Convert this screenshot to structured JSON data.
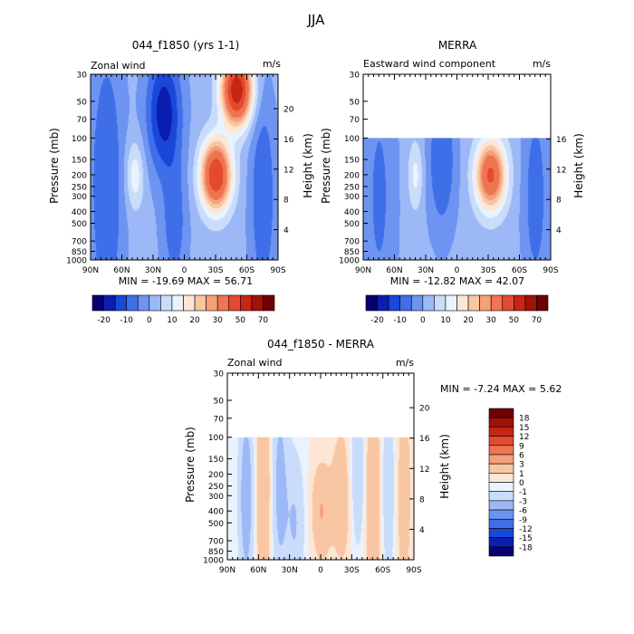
{
  "figure": {
    "title": "JJA"
  },
  "chart_data": [
    {
      "type": "heatmap",
      "title": "044_f1850 (yrs 1-1)",
      "field_label": "Zonal wind",
      "units": "m/s",
      "x_ticks": [
        "90N",
        "60N",
        "30N",
        "0",
        "30S",
        "60S",
        "90S"
      ],
      "x_range": [
        90,
        -90
      ],
      "y_left_label": "Pressure (mb)",
      "y_left_ticks": [
        30,
        50,
        70,
        100,
        150,
        200,
        250,
        300,
        400,
        500,
        700,
        850,
        1000
      ],
      "y_right_label": "Height (km)",
      "y_right_ticks": [
        4,
        8,
        12,
        16,
        20
      ],
      "data_top_pressure": 30,
      "stats_text": "MIN = -19.69   MAX = 56.71",
      "color_levels": [
        -20,
        -10,
        0,
        10,
        20,
        30,
        50,
        70
      ],
      "features": [
        {
          "lat": 75,
          "p": 250,
          "value": -12,
          "wlat": 12,
          "wlogp": 2.0
        },
        {
          "lat": 48,
          "p": 200,
          "value": 12,
          "wlat": 6,
          "wlogp": 0.45
        },
        {
          "lat": 20,
          "p": 60,
          "value": -20,
          "wlat": 12,
          "wlogp": 0.8
        },
        {
          "lat": 10,
          "p": 500,
          "value": -10,
          "wlat": 9,
          "wlogp": 0.9
        },
        {
          "lat": -30,
          "p": 200,
          "value": 48,
          "wlat": 10,
          "wlogp": 0.45
        },
        {
          "lat": -50,
          "p": 40,
          "value": 56,
          "wlat": 10,
          "wlogp": 0.45
        },
        {
          "lat": -75,
          "p": 300,
          "value": -12,
          "wlat": 9,
          "wlogp": 1.4
        }
      ],
      "colorbar": {
        "labels": [
          "-20",
          "-10",
          "0",
          "10",
          "20",
          "30",
          "50",
          "70"
        ],
        "colors": [
          "#08006e",
          "#0a1fb0",
          "#1a47d8",
          "#3e6fe8",
          "#6d94f0",
          "#9cb8f6",
          "#c9dcfa",
          "#eaf2fd",
          "#fde6d4",
          "#f8c6a3",
          "#f5a07a",
          "#ef7451",
          "#e44a2d",
          "#c72616",
          "#a2100a",
          "#6e0000"
        ]
      }
    },
    {
      "type": "heatmap",
      "title": "MERRA",
      "field_label": "Eastward wind component",
      "units": "m/s",
      "x_ticks": [
        "90N",
        "60N",
        "30N",
        "0",
        "30S",
        "60S",
        "90S"
      ],
      "x_range": [
        90,
        -90
      ],
      "y_left_label": "Pressure (mb)",
      "y_left_ticks": [
        30,
        50,
        70,
        100,
        150,
        200,
        250,
        300,
        400,
        500,
        700,
        850,
        1000
      ],
      "y_right_label": "Height (km)",
      "y_right_ticks": [
        4,
        8,
        12,
        16
      ],
      "data_top_pressure": 100,
      "stats_text": "MIN = -12.82   MAX = 42.07",
      "color_levels": [
        -20,
        -10,
        0,
        10,
        20,
        30,
        50,
        70
      ],
      "features": [
        {
          "lat": 75,
          "p": 300,
          "value": -8,
          "wlat": 12,
          "wlogp": 2.0
        },
        {
          "lat": 40,
          "p": 200,
          "value": 10,
          "wlat": 5,
          "wlogp": 0.45
        },
        {
          "lat": 15,
          "p": 150,
          "value": -12,
          "wlat": 10,
          "wlogp": 1.0
        },
        {
          "lat": -32,
          "p": 200,
          "value": 40,
          "wlat": 10,
          "wlogp": 0.45
        },
        {
          "lat": -75,
          "p": 300,
          "value": -10,
          "wlat": 9,
          "wlogp": 1.4
        }
      ],
      "colorbar": {
        "labels": [
          "-20",
          "-10",
          "0",
          "10",
          "20",
          "30",
          "50",
          "70"
        ],
        "colors": [
          "#08006e",
          "#0a1fb0",
          "#1a47d8",
          "#3e6fe8",
          "#6d94f0",
          "#9cb8f6",
          "#c9dcfa",
          "#eaf2fd",
          "#fde6d4",
          "#f8c6a3",
          "#f5a07a",
          "#ef7451",
          "#e44a2d",
          "#c72616",
          "#a2100a",
          "#6e0000"
        ]
      }
    },
    {
      "type": "heatmap",
      "title": "044_f1850 - MERRA",
      "field_label": "Zonal wind",
      "units": "m/s",
      "x_ticks": [
        "90N",
        "60N",
        "30N",
        "0",
        "30S",
        "60S",
        "90S"
      ],
      "x_range": [
        90,
        -90
      ],
      "y_left_label": "Pressure (mb)",
      "y_left_ticks": [
        30,
        50,
        70,
        100,
        150,
        200,
        250,
        300,
        400,
        500,
        700,
        850,
        1000
      ],
      "y_right_label": "Height (km)",
      "y_right_ticks": [
        4,
        8,
        12,
        16,
        20
      ],
      "data_top_pressure": 100,
      "stats_text": "MIN =  -7.24   MAX =   5.62",
      "color_levels": [
        -18,
        -15,
        -12,
        -9,
        -6,
        -3,
        -1,
        0,
        1,
        3,
        6,
        9,
        12,
        15,
        18
      ],
      "features": [
        {
          "lat": 72,
          "p": 300,
          "value": -5,
          "wlat": 5,
          "wlogp": 1.2
        },
        {
          "lat": 55,
          "p": 250,
          "value": 3,
          "wlat": 6,
          "wlogp": 1.5
        },
        {
          "lat": 40,
          "p": 250,
          "value": -4,
          "wlat": 6,
          "wlogp": 1.4
        },
        {
          "lat": 25,
          "p": 500,
          "value": -3,
          "wlat": 6,
          "wlogp": 0.9
        },
        {
          "lat": 0,
          "p": 400,
          "value": 3,
          "wlat": 6,
          "wlogp": 0.6
        },
        {
          "lat": -20,
          "p": 300,
          "value": 2,
          "wlat": 8,
          "wlogp": 1.0
        },
        {
          "lat": -35,
          "p": 200,
          "value": -3,
          "wlat": 5,
          "wlogp": 1.0
        },
        {
          "lat": -50,
          "p": 300,
          "value": 3,
          "wlat": 5,
          "wlogp": 1.5
        },
        {
          "lat": -65,
          "p": 250,
          "value": -3,
          "wlat": 4,
          "wlogp": 1.2
        },
        {
          "lat": -80,
          "p": 300,
          "value": 2,
          "wlat": 5,
          "wlogp": 1.4
        }
      ],
      "colorbar": {
        "labels": [
          "18",
          "15",
          "12",
          "9",
          "6",
          "3",
          "1",
          "0",
          "-1",
          "-3",
          "-6",
          "-9",
          "-12",
          "-15",
          "-18"
        ],
        "colors": [
          "#6e0000",
          "#a2100a",
          "#c72616",
          "#e44a2d",
          "#ef7451",
          "#f5a07a",
          "#f8c6a3",
          "#fde6d4",
          "#eaf2fd",
          "#c9dcfa",
          "#9cb8f6",
          "#6d94f0",
          "#3e6fe8",
          "#1a47d8",
          "#0a1fb0",
          "#08006e"
        ]
      }
    }
  ]
}
